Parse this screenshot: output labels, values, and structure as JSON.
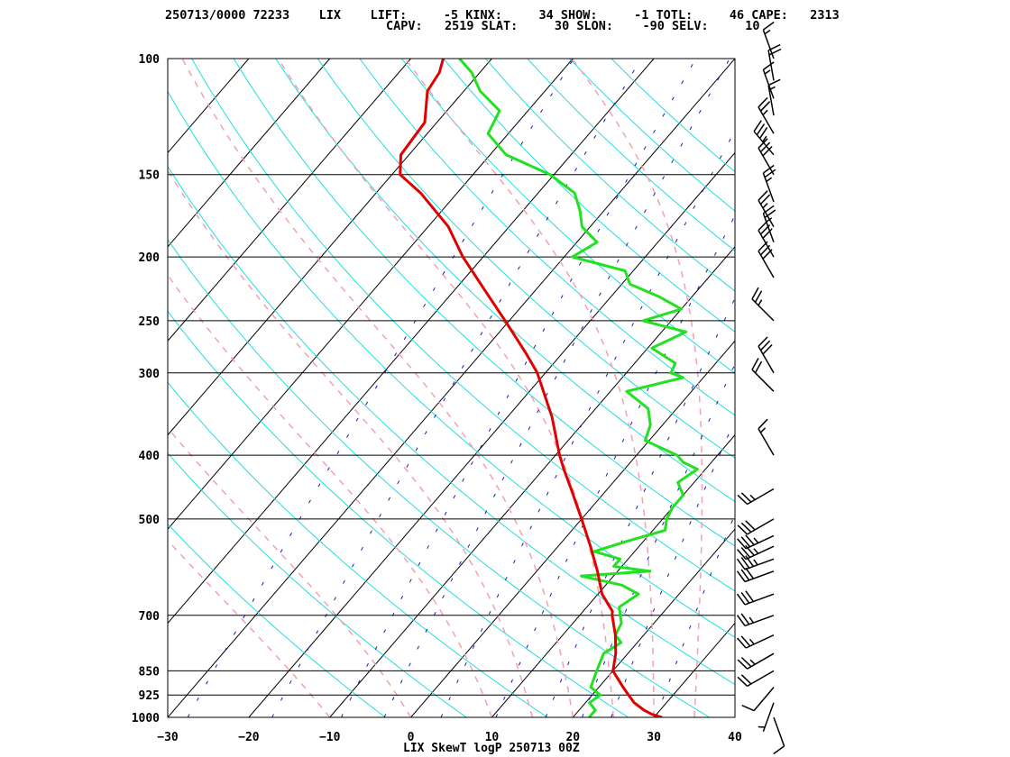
{
  "header": {
    "line1": "250713/0000 72233    LIX    LIFT:     -5 KINX:     34 SHOW:     -1 TOTL:     46 CAPE:   2313",
    "line2": "CAPV:   2519 SLAT:     30 SLON:    -90 SELV:     10"
  },
  "footer_title": "LIX SkewT logP 250713 00Z",
  "colors": {
    "temperature": "#e00000",
    "dewpoint": "#22e022",
    "isotherm": "#000000",
    "dry_adiabat": "#22dddd",
    "moist_adiabat": "#f4a0b4",
    "mixing_ratio": "#1a1ab4",
    "isobar": "#000000",
    "wind_barb": "#000000"
  },
  "chart_data": {
    "type": "skewt",
    "title": "LIX SkewT logP 250713 00Z",
    "station": "72233",
    "site": "LIX",
    "indices": {
      "LIFT": -5,
      "KINX": 34,
      "SHOW": -1,
      "TOTL": 46,
      "CAPE": 2313,
      "CAPV": 2519,
      "SLAT": 30,
      "SLON": -90,
      "SELV": 10
    },
    "xlabel": "",
    "ylabel": "",
    "xlim": [
      -30,
      40
    ],
    "ylim": [
      1000,
      100
    ],
    "y_scale": "log",
    "pressure_ticks": [
      100,
      150,
      200,
      250,
      300,
      400,
      500,
      700,
      850,
      925,
      1000
    ],
    "temperature_ticks": [
      -30,
      -20,
      -10,
      0,
      10,
      20,
      30,
      40
    ],
    "dry_adiabats_K": [
      270,
      280,
      290,
      300,
      310,
      320,
      330,
      340,
      350,
      360,
      370,
      380,
      390,
      400,
      410,
      420,
      430,
      440
    ],
    "moist_adiabats_C": [
      -10,
      0,
      10,
      15,
      20,
      25,
      30,
      35
    ],
    "mixing_ratio_lines_gkg": [
      0.4,
      1,
      2,
      3,
      5,
      8,
      12,
      16,
      20,
      28
    ],
    "temperature": {
      "name": "Temperature",
      "p": [
        1000,
        990,
        975,
        950,
        925,
        900,
        850,
        800,
        750,
        700,
        690,
        650,
        600,
        550,
        500,
        450,
        420,
        400,
        350,
        300,
        280,
        250,
        230,
        200,
        180,
        160,
        150,
        140,
        125,
        112,
        105,
        100
      ],
      "t": [
        31.0,
        29.5,
        28.0,
        26.0,
        24.5,
        23.0,
        20.0,
        18.5,
        16.5,
        14.0,
        13.6,
        10.5,
        7.5,
        4.0,
        0.0,
        -4.5,
        -7.5,
        -9.5,
        -14.5,
        -21.0,
        -24.5,
        -30.5,
        -35.0,
        -42.5,
        -47.5,
        -54.5,
        -59.0,
        -61.0,
        -61.5,
        -64.5,
        -65.0,
        -66.0
      ]
    },
    "dewpoint": {
      "name": "Dewpoint",
      "p": [
        1000,
        975,
        950,
        925,
        900,
        850,
        800,
        770,
        750,
        720,
        700,
        680,
        650,
        630,
        610,
        600,
        590,
        575,
        560,
        540,
        520,
        500,
        480,
        460,
        440,
        420,
        410,
        400,
        380,
        360,
        340,
        320,
        305,
        300,
        290,
        275,
        260,
        250,
        240,
        230,
        220,
        210,
        200,
        190,
        180,
        170,
        160,
        150,
        140,
        130,
        120,
        112,
        105,
        100
      ],
      "td": [
        22.0,
        22.0,
        20.5,
        21.0,
        19.0,
        18.0,
        17.0,
        18.0,
        16.5,
        16.0,
        15.0,
        14.0,
        15.0,
        12.0,
        6.0,
        14.0,
        9.0,
        9.0,
        5.0,
        8.0,
        11.5,
        10.5,
        10.0,
        10.0,
        8.0,
        9.0,
        6.5,
        5.0,
        -0.5,
        -1.5,
        -3.5,
        -8.0,
        -2.5,
        -4.5,
        -5.0,
        -9.5,
        -7.0,
        -13.5,
        -10.0,
        -14.0,
        -19.0,
        -21.0,
        -29.0,
        -27.5,
        -31.0,
        -33.0,
        -35.5,
        -40.5,
        -48.0,
        -52.5,
        -53.5,
        -58.0,
        -61.0,
        -64.0
      ]
    },
    "wind": {
      "name": "Wind",
      "p": [
        1000,
        950,
        900,
        850,
        800,
        750,
        700,
        650,
        600,
        575,
        550,
        530,
        500,
        450,
        400,
        320,
        300,
        250,
        215,
        200,
        190,
        180,
        165,
        150,
        140,
        130,
        122,
        115,
        108,
        100
      ],
      "dir": [
        160,
        200,
        220,
        240,
        240,
        245,
        250,
        250,
        250,
        250,
        245,
        245,
        240,
        240,
        330,
        315,
        330,
        315,
        330,
        330,
        340,
        330,
        340,
        330,
        320,
        330,
        350,
        340,
        350,
        340
      ],
      "spd": [
        10,
        5,
        10,
        20,
        25,
        25,
        25,
        30,
        30,
        35,
        35,
        35,
        30,
        25,
        15,
        20,
        30,
        25,
        30,
        30,
        25,
        25,
        25,
        30,
        35,
        25,
        15,
        15,
        20,
        15
      ]
    }
  }
}
